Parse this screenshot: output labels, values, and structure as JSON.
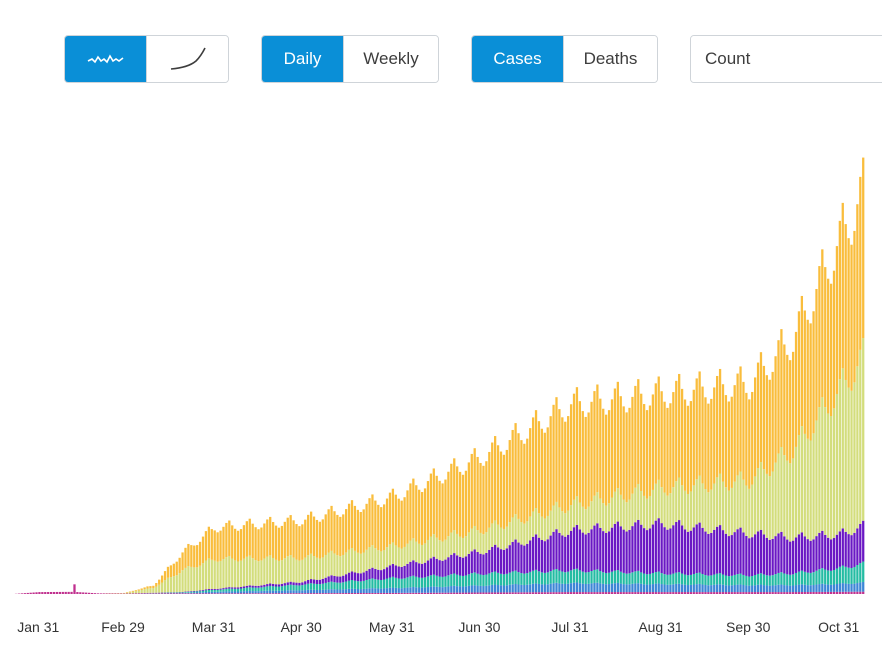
{
  "controls": {
    "mode": {
      "options": [
        "daily-sparkline-icon",
        "cumulative-curve-icon"
      ],
      "selected": 0
    },
    "frequency": {
      "options": [
        "Daily",
        "Weekly"
      ],
      "selected": "Daily"
    },
    "metric": {
      "options": [
        "Cases",
        "Deaths"
      ],
      "selected": "Cases"
    },
    "scale": {
      "value": "Count"
    }
  },
  "colors": {
    "accent": "#0a8fd7",
    "series": [
      "#f9bd3c",
      "#d3dd7c",
      "#6a18c4",
      "#24bca3",
      "#3c86d6",
      "#c0308e"
    ]
  },
  "chart_data": {
    "type": "bar",
    "stacked": true,
    "x_start": "2020-01-22",
    "x_end": "2020-11-08",
    "interval": "daily",
    "x_ticks": [
      "Jan 31",
      "Feb 29",
      "Mar 31",
      "Apr 30",
      "May 31",
      "Jun 30",
      "Jul 31",
      "Aug 31",
      "Sep 30",
      "Oct 31"
    ],
    "title": "",
    "xlabel": "",
    "ylabel": "",
    "y_axis_shown": false,
    "grid": false,
    "legend": "none",
    "weekly_pattern": [
      1.0,
      0.93,
      0.88,
      0.85,
      0.87,
      0.92,
      0.97
    ],
    "series_order_bottom_to_top": [
      "magenta",
      "blue",
      "teal",
      "purple",
      "lime",
      "yellow"
    ],
    "anchors": [
      {
        "date": "2020-01-22",
        "magenta": 0,
        "blue": 0,
        "teal": 0,
        "purple": 0,
        "lime": 0,
        "yellow": 0
      },
      {
        "date": "2020-01-31",
        "magenta": 900,
        "blue": 0,
        "teal": 0,
        "purple": 0,
        "lime": 0,
        "yellow": 0
      },
      {
        "date": "2020-02-12",
        "magenta": 1000,
        "blue": 0,
        "teal": 0,
        "purple": 0,
        "lime": 0,
        "yellow": 0
      },
      {
        "date": "2020-02-20",
        "magenta": 300,
        "blue": 0,
        "teal": 0,
        "purple": 0,
        "lime": 0,
        "yellow": 0
      },
      {
        "date": "2020-02-29",
        "magenta": 200,
        "blue": 0,
        "teal": 0,
        "purple": 0,
        "lime": 200,
        "yellow": 100
      },
      {
        "date": "2020-03-10",
        "magenta": 300,
        "blue": 100,
        "teal": 100,
        "purple": 100,
        "lime": 2500,
        "yellow": 1200
      },
      {
        "date": "2020-03-20",
        "magenta": 300,
        "blue": 200,
        "teal": 300,
        "purple": 200,
        "lime": 11000,
        "yellow": 9000
      },
      {
        "date": "2020-03-31",
        "magenta": 300,
        "blue": 800,
        "teal": 1000,
        "purple": 500,
        "lime": 15000,
        "yellow": 16000
      },
      {
        "date": "2020-04-30",
        "magenta": 400,
        "blue": 1500,
        "teal": 2800,
        "purple": 1500,
        "lime": 12000,
        "yellow": 19000
      },
      {
        "date": "2020-05-31",
        "magenta": 500,
        "blue": 2500,
        "teal": 5000,
        "purple": 6000,
        "lime": 10000,
        "yellow": 25000
      },
      {
        "date": "2020-06-30",
        "magenta": 700,
        "blue": 3500,
        "teal": 6000,
        "purple": 11000,
        "lime": 11000,
        "yellow": 37000
      },
      {
        "date": "2020-07-31",
        "magenta": 900,
        "blue": 4500,
        "teal": 6500,
        "purple": 20000,
        "lime": 13000,
        "yellow": 51000
      },
      {
        "date": "2020-08-31",
        "magenta": 900,
        "blue": 4000,
        "teal": 5500,
        "purple": 25000,
        "lime": 18000,
        "yellow": 48000
      },
      {
        "date": "2020-09-30",
        "magenta": 900,
        "blue": 3500,
        "teal": 5000,
        "purple": 21000,
        "lime": 27000,
        "yellow": 49000
      },
      {
        "date": "2020-10-15",
        "magenta": 900,
        "blue": 3500,
        "teal": 6000,
        "purple": 18000,
        "lime": 44000,
        "yellow": 57000
      },
      {
        "date": "2020-10-31",
        "magenta": 1000,
        "blue": 4000,
        "teal": 8000,
        "purple": 17000,
        "lime": 73000,
        "yellow": 76000
      },
      {
        "date": "2020-11-08",
        "magenta": 1100,
        "blue": 4500,
        "teal": 9500,
        "purple": 19000,
        "lime": 85000,
        "yellow": 84000
      }
    ],
    "spike": {
      "date": "2020-02-12",
      "magenta": 4500
    },
    "ylim": [
      0,
      215000
    ]
  }
}
